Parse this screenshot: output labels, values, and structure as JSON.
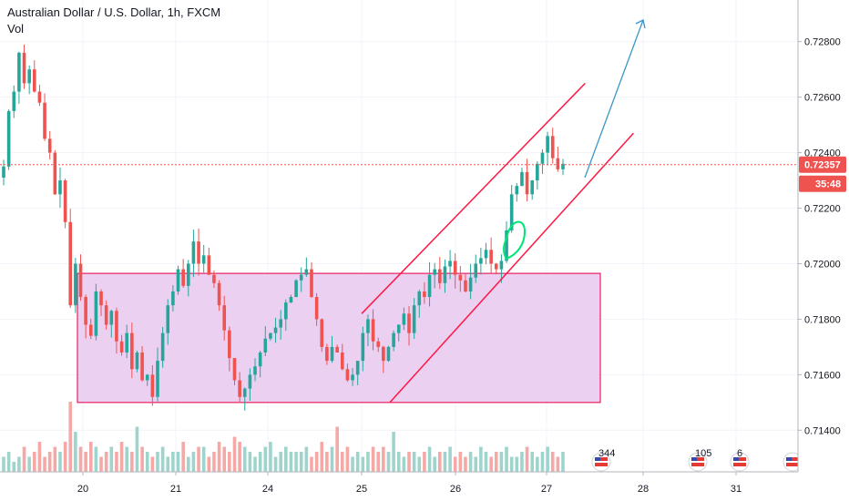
{
  "header": {
    "title": "Australian Dollar / U.S. Dollar, 1h, FXCM",
    "indicator": "Vol"
  },
  "price_badge": {
    "value": "0.72357",
    "countdown": "35:48",
    "color": "#ef5350"
  },
  "colors": {
    "up": "#26a69a",
    "down": "#ef5350",
    "vol_up": "#9fd4cd",
    "vol_down": "#f4a9a7",
    "range_fill": "#e7c8ef",
    "range_stroke": "#e91e63",
    "channel": "#ff1744",
    "arrow": "#3a95c7",
    "highlight": "#00e676"
  },
  "chart_data": {
    "type": "candlestick",
    "title": "Australian Dollar / U.S. Dollar, 1h, FXCM",
    "ylim": [
      0.7125,
      0.7295
    ],
    "y_ticks": [
      "0.72800",
      "0.72600",
      "0.72400",
      "0.72200",
      "0.72000",
      "0.71800",
      "0.71600",
      "0.71400"
    ],
    "x_ticks": [
      "20",
      "21",
      "24",
      "25",
      "26",
      "27",
      "28",
      "31"
    ],
    "current_price": 0.72357,
    "price_path": [
      0.7235,
      0.7255,
      0.7262,
      0.7276,
      0.7265,
      0.727,
      0.7262,
      0.7258,
      0.7245,
      0.724,
      0.7225,
      0.723,
      0.7215,
      0.7185,
      0.72,
      0.7188,
      0.7178,
      0.7174,
      0.719,
      0.7185,
      0.7178,
      0.7183,
      0.7172,
      0.7168,
      0.7175,
      0.7162,
      0.7168,
      0.7158,
      0.716,
      0.7152,
      0.7165,
      0.7175,
      0.7185,
      0.719,
      0.7198,
      0.7192,
      0.72,
      0.7208,
      0.72,
      0.7203,
      0.7196,
      0.7193,
      0.7185,
      0.7176,
      0.7166,
      0.7158,
      0.7152,
      0.7155,
      0.716,
      0.7163,
      0.7168,
      0.7173,
      0.7175,
      0.7177,
      0.718,
      0.7186,
      0.7188,
      0.7194,
      0.7196,
      0.7198,
      0.7188,
      0.718,
      0.717,
      0.7165,
      0.717,
      0.7168,
      0.7162,
      0.7158,
      0.716,
      0.7165,
      0.7175,
      0.718,
      0.7172,
      0.717,
      0.7165,
      0.717,
      0.7175,
      0.7178,
      0.7182,
      0.7175,
      0.7185,
      0.719,
      0.7188,
      0.7196,
      0.7198,
      0.7193,
      0.7199,
      0.7201,
      0.7196,
      0.7194,
      0.719,
      0.7195,
      0.72,
      0.7202,
      0.7205,
      0.72,
      0.7198,
      0.7201,
      0.7212,
      0.7225,
      0.7228,
      0.7233,
      0.7225,
      0.723,
      0.7236,
      0.724,
      0.7246,
      0.7238,
      0.7234,
      0.7236
    ],
    "volume": [
      3,
      4,
      2,
      3,
      5,
      3,
      4,
      6,
      3,
      4,
      5,
      4,
      6,
      14,
      8,
      5,
      4,
      6,
      5,
      3,
      4,
      5,
      4,
      6,
      5,
      4,
      9,
      5,
      4,
      3,
      4,
      5,
      3,
      4,
      4,
      6,
      3,
      4,
      5,
      5,
      3,
      4,
      6,
      5,
      4,
      7,
      6,
      5,
      4,
      3,
      4,
      5,
      6,
      3,
      4,
      5,
      4,
      4,
      4,
      5,
      3,
      4,
      6,
      4,
      5,
      9,
      4,
      5,
      3,
      4,
      3,
      4,
      5,
      4,
      5,
      4,
      8,
      4,
      3,
      4,
      4,
      3,
      4,
      5,
      3,
      4,
      4,
      5,
      3,
      4,
      3,
      4,
      3,
      5,
      4,
      3,
      4,
      4,
      5,
      3,
      3,
      4,
      5,
      4,
      3,
      4,
      5,
      4,
      3,
      4
    ],
    "range_box": {
      "top": 0.71965,
      "bottom": 0.715
    },
    "channel": {
      "upper": {
        "from": [
          "25",
          0.7182
        ],
        "to": [
          "27.4",
          0.7265
        ]
      },
      "lower": {
        "from": [
          "25.3",
          0.715
        ],
        "to": [
          "27.9",
          0.7247
        ]
      }
    },
    "event_markers": [
      {
        "count": "344"
      },
      {
        "count": "105"
      },
      {
        "count": "6"
      },
      {
        "count": ""
      }
    ]
  }
}
